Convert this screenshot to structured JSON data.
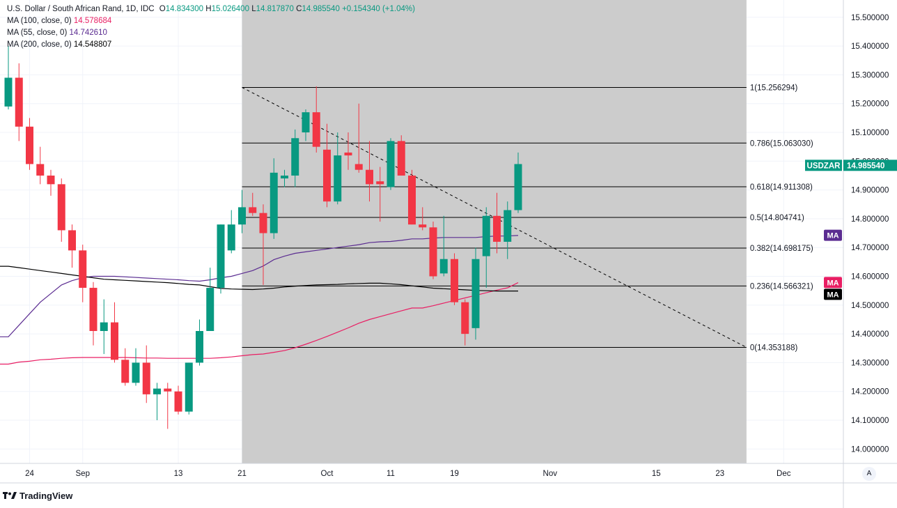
{
  "header": {
    "symbol_text": "U.S. Dollar / South African Rand, 1D, IDC",
    "ohlc": [
      {
        "label": "O",
        "value": "14.834300"
      },
      {
        "label": "H",
        "value": "15.026400"
      },
      {
        "label": "L",
        "value": "14.817870"
      },
      {
        "label": "C",
        "value": "14.985540"
      }
    ],
    "change": "+0.154340 (+1.04%)"
  },
  "indicators": [
    {
      "label": "MA (100, close, 0)",
      "value": "14.578684",
      "color": "#e91e63"
    },
    {
      "label": "MA (55, close, 0)",
      "value": "14.742610",
      "color": "#5b2c91"
    },
    {
      "label": "MA (200, close, 0)",
      "value": "14.548807",
      "color": "#000000"
    }
  ],
  "branding": {
    "name": "TradingView"
  },
  "scale_button": "A",
  "colors": {
    "up": "#089981",
    "down": "#f23645",
    "fib_zone": "#cccccc",
    "ma100": "#e91e63",
    "ma55": "#5b2c91",
    "ma200": "#000000"
  },
  "chart_data": {
    "type": "candlestick",
    "y_axis": {
      "range": [
        13.95,
        15.56
      ],
      "ticks": [
        "14.000000",
        "14.100000",
        "14.200000",
        "14.300000",
        "14.400000",
        "14.500000",
        "14.600000",
        "14.700000",
        "14.800000",
        "14.900000",
        "15.000000",
        "15.100000",
        "15.200000",
        "15.300000",
        "15.400000",
        "15.500000"
      ]
    },
    "x_axis": {
      "labels": [
        {
          "text": "24",
          "bar": 2
        },
        {
          "text": "Sep",
          "bar": 7
        },
        {
          "text": "13",
          "bar": 16
        },
        {
          "text": "21",
          "bar": 22
        },
        {
          "text": "Oct",
          "bar": 30
        },
        {
          "text": "11",
          "bar": 36
        },
        {
          "text": "19",
          "bar": 42
        },
        {
          "text": "Nov",
          "bar": 51
        },
        {
          "text": "15",
          "bar": 61
        },
        {
          "text": "23",
          "bar": 67
        },
        {
          "text": "Dec",
          "bar": 73
        }
      ]
    },
    "candles": [
      {
        "o": 15.19,
        "h": 15.4,
        "l": 15.18,
        "c": 15.29
      },
      {
        "o": 15.29,
        "h": 15.34,
        "l": 15.07,
        "c": 15.12
      },
      {
        "o": 15.12,
        "h": 15.15,
        "l": 14.97,
        "c": 14.99
      },
      {
        "o": 14.99,
        "h": 15.05,
        "l": 14.92,
        "c": 14.95
      },
      {
        "o": 14.95,
        "h": 14.97,
        "l": 14.88,
        "c": 14.92
      },
      {
        "o": 14.92,
        "h": 14.94,
        "l": 14.72,
        "c": 14.76
      },
      {
        "o": 14.76,
        "h": 14.78,
        "l": 14.63,
        "c": 14.69
      },
      {
        "o": 14.69,
        "h": 14.71,
        "l": 14.51,
        "c": 14.56
      },
      {
        "o": 14.56,
        "h": 14.58,
        "l": 14.36,
        "c": 14.41
      },
      {
        "o": 14.41,
        "h": 14.52,
        "l": 14.33,
        "c": 14.44
      },
      {
        "o": 14.44,
        "h": 14.51,
        "l": 14.3,
        "c": 14.31
      },
      {
        "o": 14.31,
        "h": 14.35,
        "l": 14.22,
        "c": 14.23
      },
      {
        "o": 14.23,
        "h": 14.35,
        "l": 14.22,
        "c": 14.3
      },
      {
        "o": 14.3,
        "h": 14.36,
        "l": 14.16,
        "c": 14.19
      },
      {
        "o": 14.19,
        "h": 14.23,
        "l": 14.1,
        "c": 14.21
      },
      {
        "o": 14.21,
        "h": 14.23,
        "l": 14.07,
        "c": 14.2
      },
      {
        "o": 14.2,
        "h": 14.22,
        "l": 14.12,
        "c": 14.13
      },
      {
        "o": 14.13,
        "h": 14.3,
        "l": 14.12,
        "c": 14.3
      },
      {
        "o": 14.3,
        "h": 14.45,
        "l": 14.29,
        "c": 14.41
      },
      {
        "o": 14.41,
        "h": 14.63,
        "l": 14.41,
        "c": 14.56
      },
      {
        "o": 14.56,
        "h": 14.78,
        "l": 14.54,
        "c": 14.78
      },
      {
        "o": 14.69,
        "h": 14.83,
        "l": 14.68,
        "c": 14.78
      },
      {
        "o": 14.78,
        "h": 14.9,
        "l": 14.75,
        "c": 14.84
      },
      {
        "o": 14.84,
        "h": 14.89,
        "l": 14.81,
        "c": 14.82
      },
      {
        "o": 14.82,
        "h": 14.85,
        "l": 14.57,
        "c": 14.75
      },
      {
        "o": 14.75,
        "h": 15.01,
        "l": 14.73,
        "c": 14.96
      },
      {
        "o": 14.94,
        "h": 14.97,
        "l": 14.91,
        "c": 14.95
      },
      {
        "o": 14.95,
        "h": 15.11,
        "l": 14.91,
        "c": 15.08
      },
      {
        "o": 15.1,
        "h": 15.18,
        "l": 15.07,
        "c": 15.17
      },
      {
        "o": 15.17,
        "h": 15.26,
        "l": 15.03,
        "c": 15.05
      },
      {
        "o": 15.04,
        "h": 15.13,
        "l": 14.84,
        "c": 14.86
      },
      {
        "o": 14.86,
        "h": 15.1,
        "l": 14.85,
        "c": 15.02
      },
      {
        "o": 15.03,
        "h": 15.1,
        "l": 14.97,
        "c": 15.02
      },
      {
        "o": 14.99,
        "h": 15.2,
        "l": 14.96,
        "c": 14.97
      },
      {
        "o": 14.97,
        "h": 15.07,
        "l": 14.86,
        "c": 14.92
      },
      {
        "o": 14.93,
        "h": 14.98,
        "l": 14.79,
        "c": 14.92
      },
      {
        "o": 14.91,
        "h": 15.08,
        "l": 14.9,
        "c": 15.07
      },
      {
        "o": 15.07,
        "h": 15.09,
        "l": 14.96,
        "c": 14.95
      },
      {
        "o": 14.95,
        "h": 14.97,
        "l": 14.78,
        "c": 14.78
      },
      {
        "o": 14.78,
        "h": 14.84,
        "l": 14.76,
        "c": 14.77
      },
      {
        "o": 14.77,
        "h": 14.79,
        "l": 14.59,
        "c": 14.6
      },
      {
        "o": 14.61,
        "h": 14.81,
        "l": 14.6,
        "c": 14.66
      },
      {
        "o": 14.66,
        "h": 14.68,
        "l": 14.5,
        "c": 14.51
      },
      {
        "o": 14.51,
        "h": 14.52,
        "l": 14.36,
        "c": 14.4
      },
      {
        "o": 14.42,
        "h": 14.7,
        "l": 14.38,
        "c": 14.66
      },
      {
        "o": 14.67,
        "h": 14.84,
        "l": 14.56,
        "c": 14.81
      },
      {
        "o": 14.81,
        "h": 14.89,
        "l": 14.68,
        "c": 14.72
      },
      {
        "o": 14.72,
        "h": 14.86,
        "l": 14.66,
        "c": 14.83
      },
      {
        "o": 14.83,
        "h": 15.03,
        "l": 14.82,
        "c": 14.99
      }
    ],
    "moving_averages": [
      {
        "name": "MA 100",
        "color": "#e91e63",
        "start_bar": 0,
        "values": [
          14.295,
          14.302,
          14.305,
          14.31,
          14.312,
          14.315,
          14.317,
          14.318,
          14.318,
          14.318,
          14.318,
          14.318,
          14.317,
          14.316,
          14.316,
          14.315,
          14.315,
          14.315,
          14.315,
          14.315,
          14.317,
          14.32,
          14.324,
          14.328,
          14.33,
          14.336,
          14.342,
          14.352,
          14.364,
          14.377,
          14.391,
          14.406,
          14.421,
          14.437,
          14.45,
          14.46,
          14.47,
          14.48,
          14.49,
          14.49,
          14.498,
          14.507,
          14.516,
          14.525,
          14.534,
          14.543,
          14.552,
          14.56,
          14.578
        ]
      },
      {
        "name": "MA 55",
        "color": "#5b2c91",
        "start_bar": 0,
        "values": [
          14.39,
          14.43,
          14.47,
          14.51,
          14.54,
          14.57,
          14.585,
          14.595,
          14.6,
          14.6,
          14.6,
          14.598,
          14.596,
          14.594,
          14.592,
          14.59,
          14.588,
          14.585,
          14.583,
          14.588,
          14.595,
          14.6,
          14.61,
          14.62,
          14.636,
          14.658,
          14.67,
          14.68,
          14.685,
          14.69,
          14.695,
          14.7,
          14.705,
          14.71,
          14.717,
          14.72,
          14.721,
          14.725,
          14.73,
          14.73,
          14.733,
          14.735,
          14.735,
          14.735,
          14.735,
          14.738,
          14.74,
          14.74,
          14.742
        ]
      },
      {
        "name": "MA 200",
        "color": "#000000",
        "start_bar": 0,
        "values": [
          14.635,
          14.63,
          14.625,
          14.62,
          14.615,
          14.61,
          14.605,
          14.6,
          14.595,
          14.59,
          14.588,
          14.586,
          14.584,
          14.582,
          14.58,
          14.578,
          14.575,
          14.572,
          14.57,
          14.564,
          14.558,
          14.556,
          14.555,
          14.554,
          14.556,
          14.559,
          14.563,
          14.566,
          14.568,
          14.57,
          14.571,
          14.572,
          14.574,
          14.575,
          14.576,
          14.576,
          14.574,
          14.571,
          14.567,
          14.563,
          14.559,
          14.557,
          14.555,
          14.553,
          14.551,
          14.55,
          14.549,
          14.549,
          14.549
        ]
      }
    ],
    "fibonacci": {
      "start_bar": 22,
      "end_bar": 69.5,
      "levels": [
        {
          "ratio": "1",
          "price": 15.256294,
          "label": "1(15.256294)"
        },
        {
          "ratio": "0.786",
          "price": 15.06303,
          "label": "0.786(15.063030)"
        },
        {
          "ratio": "0.618",
          "price": 14.911308,
          "label": "0.618(14.911308)"
        },
        {
          "ratio": "0.5",
          "price": 14.804741,
          "label": "0.5(14.804741)"
        },
        {
          "ratio": "0.382",
          "price": 14.698175,
          "label": "0.382(14.698175)"
        },
        {
          "ratio": "0.236",
          "price": 14.566321,
          "label": "0.236(14.566321)"
        },
        {
          "ratio": "0",
          "price": 14.353188,
          "label": "0(14.353188)"
        }
      ]
    },
    "price_badges": [
      {
        "label": "USDZAR",
        "value": "14.985540",
        "price": 14.98554,
        "color": "#089981"
      },
      {
        "label": "MA",
        "price": 14.74261,
        "color": "#5b2c91"
      },
      {
        "label": "MA",
        "price": 14.578684,
        "color": "#e91e63"
      },
      {
        "label": "MA",
        "price": 14.548807,
        "color": "#000000"
      }
    ]
  }
}
